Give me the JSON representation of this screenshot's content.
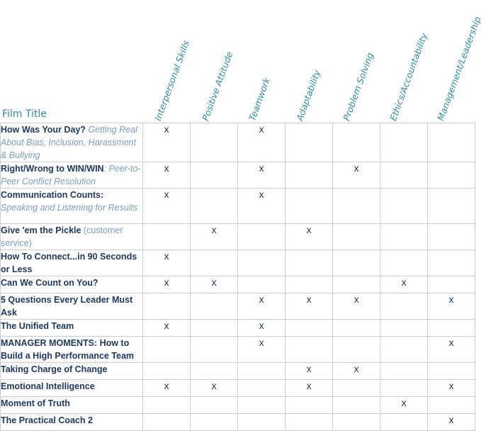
{
  "header": {
    "film_title_label": "Film Title",
    "columns": [
      "Interpersonal Skills",
      "Positive Attitude",
      "Teamwork",
      "Adaptability",
      "Problem Solving",
      "Ethics/Accountability",
      "Management/Leadership"
    ]
  },
  "mark_symbol": "x",
  "rows": [
    {
      "bold": "How Was Your Day?",
      "italic": " Getting Real About Bias, Inclusion, Harassment & Bullying",
      "plain": "",
      "marks": [
        1,
        0,
        1,
        0,
        0,
        0,
        0
      ]
    },
    {
      "bold": "Right/Wrong to WIN/WIN",
      "italic": ": Peer-to-Peer Conflict Resolution",
      "plain": "",
      "marks": [
        1,
        0,
        1,
        0,
        1,
        0,
        0
      ]
    },
    {
      "bold": "Communication Counts:",
      "italic": " Speaking and Listening for Results",
      "plain": "",
      "marks": [
        1,
        0,
        1,
        0,
        0,
        0,
        0
      ]
    },
    {
      "bold": "Give 'em the Pickle",
      "italic": "",
      "plain": " (customer service)",
      "marks": [
        0,
        1,
        0,
        1,
        0,
        0,
        0
      ]
    },
    {
      "bold": "How To Connect...in 90 Seconds or Less",
      "italic": "",
      "plain": "",
      "marks": [
        1,
        0,
        0,
        0,
        0,
        0,
        0
      ]
    },
    {
      "bold": "Can We Count on You?",
      "italic": "",
      "plain": "",
      "marks": [
        1,
        1,
        0,
        0,
        0,
        1,
        0
      ]
    },
    {
      "bold": "5 Questions Every Leader Must Ask",
      "italic": "",
      "plain": "",
      "marks": [
        0,
        0,
        1,
        1,
        1,
        0,
        1
      ]
    },
    {
      "bold": "The Unified Team",
      "italic": "",
      "plain": "",
      "marks": [
        1,
        0,
        1,
        0,
        0,
        0,
        0
      ]
    },
    {
      "bold": "MANAGER MOMENTS: How to Build a High Performance Team",
      "italic": "",
      "plain": "",
      "marks": [
        0,
        0,
        1,
        0,
        0,
        0,
        1
      ]
    },
    {
      "bold": "Taking Charge of Change",
      "italic": "",
      "plain": "",
      "marks": [
        0,
        0,
        0,
        1,
        1,
        0,
        0
      ]
    },
    {
      "bold": "Emotional Intelligence",
      "italic": "",
      "plain": "",
      "marks": [
        1,
        1,
        0,
        1,
        0,
        0,
        1
      ]
    },
    {
      "bold": "Moment of Truth",
      "italic": "",
      "plain": "",
      "marks": [
        0,
        0,
        0,
        0,
        0,
        1,
        0
      ]
    },
    {
      "bold": "The Practical Coach 2",
      "italic": "",
      "plain": "",
      "marks": [
        0,
        0,
        0,
        0,
        0,
        0,
        1
      ]
    }
  ]
}
